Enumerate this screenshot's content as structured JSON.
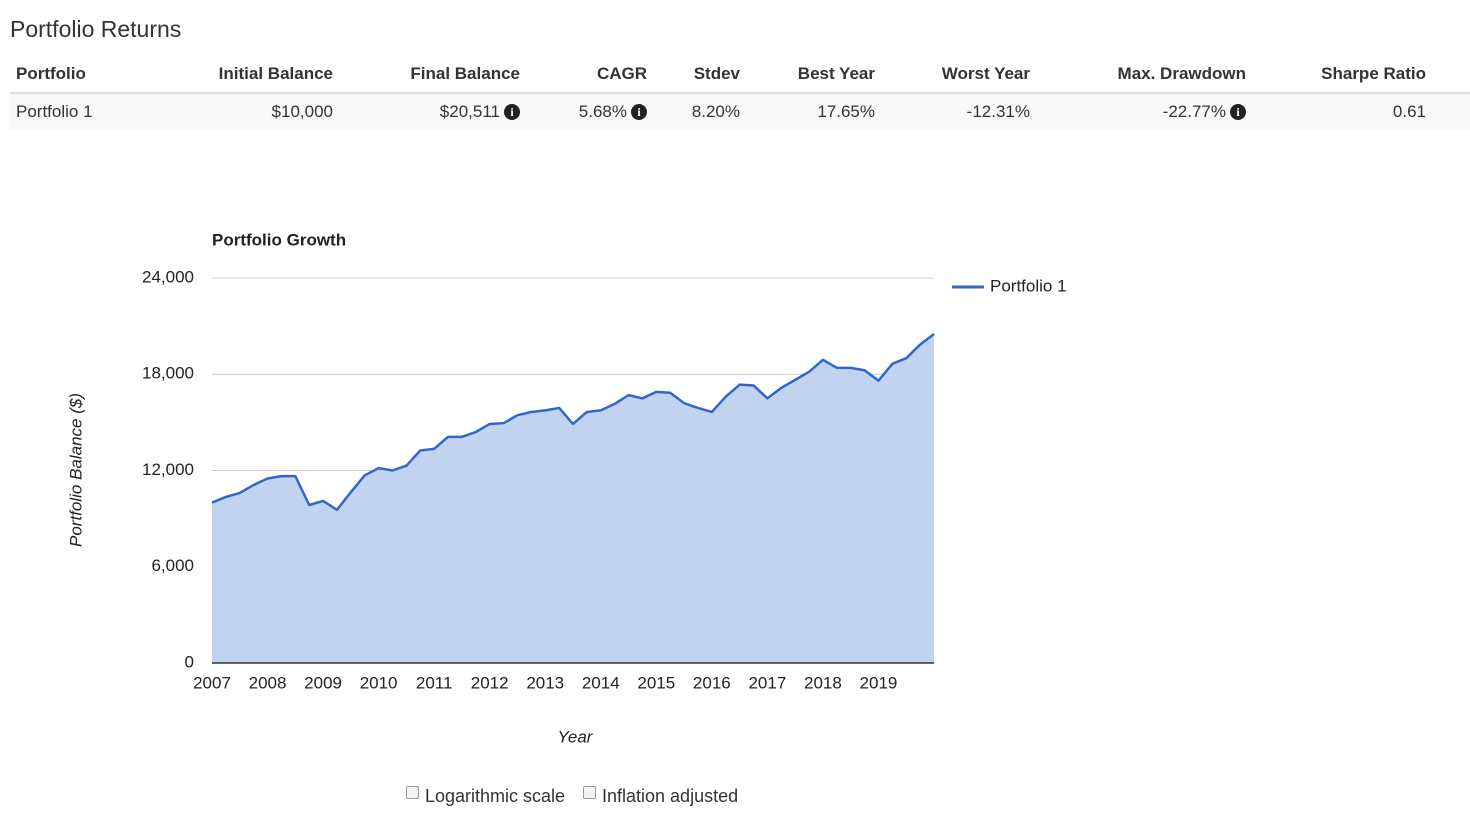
{
  "header": {
    "title": "Portfolio Returns"
  },
  "table": {
    "columns": [
      "Portfolio",
      "Initial Balance",
      "Final Balance",
      "CAGR",
      "Stdev",
      "Best Year",
      "Worst Year",
      "Max. Drawdown",
      "Sharpe Ratio"
    ],
    "rows": [
      [
        "Portfolio 1",
        "$10,000",
        "$20,511",
        "5.68%",
        "8.20%",
        "17.65%",
        "-12.31%",
        "-22.77%",
        "0.61"
      ]
    ]
  },
  "chart_data": {
    "type": "area",
    "title": "Portfolio Growth",
    "x_label": "Year",
    "y_label": "Portfolio Balance ($)",
    "x": [
      2007,
      2007.25,
      2007.5,
      2007.75,
      2008,
      2008.25,
      2008.5,
      2008.75,
      2009,
      2009.25,
      2009.5,
      2009.75,
      2010,
      2010.25,
      2010.5,
      2010.75,
      2011,
      2011.25,
      2011.5,
      2011.75,
      2012,
      2012.25,
      2012.5,
      2012.75,
      2013,
      2013.25,
      2013.5,
      2013.75,
      2014,
      2014.25,
      2014.5,
      2014.75,
      2015,
      2015.25,
      2015.5,
      2015.75,
      2016,
      2016.25,
      2016.5,
      2016.75,
      2017,
      2017.25,
      2017.5,
      2017.75,
      2018,
      2018.25,
      2018.5,
      2018.75,
      2019,
      2019.25,
      2019.5,
      2019.75,
      2020
    ],
    "series": [
      {
        "name": "Portfolio 1",
        "color": "#3366cc",
        "values": [
          10000,
          10350,
          10600,
          11100,
          11500,
          11650,
          11650,
          9850,
          10100,
          9550,
          10650,
          11700,
          12150,
          12000,
          12300,
          13250,
          13350,
          14100,
          14100,
          14400,
          14900,
          14950,
          15450,
          15650,
          15750,
          15900,
          14900,
          15650,
          15750,
          16150,
          16700,
          16500,
          16900,
          16850,
          16200,
          15900,
          15650,
          16600,
          17350,
          17300,
          16500,
          17150,
          17650,
          18150,
          18900,
          18400,
          18400,
          18250,
          17600,
          18650,
          19000,
          19850,
          20511
        ]
      }
    ],
    "xlim": [
      2007,
      2020
    ],
    "ylim": [
      0,
      24000
    ],
    "xticks": [
      2007,
      2008,
      2009,
      2010,
      2011,
      2012,
      2013,
      2014,
      2015,
      2016,
      2017,
      2018,
      2019
    ],
    "yticks": [
      0,
      {
        "value": 6000,
        "label": "6,000"
      },
      {
        "value": 12000,
        "label": "12,000"
      },
      {
        "value": 18000,
        "label": "18,000"
      },
      {
        "value": 24000,
        "label": "24,000"
      }
    ],
    "grid": true,
    "legend": "right",
    "fill": "#c2d3f0"
  },
  "controls": {
    "log_scale": "Logarithmic scale",
    "inflation": "Inflation adjusted"
  }
}
